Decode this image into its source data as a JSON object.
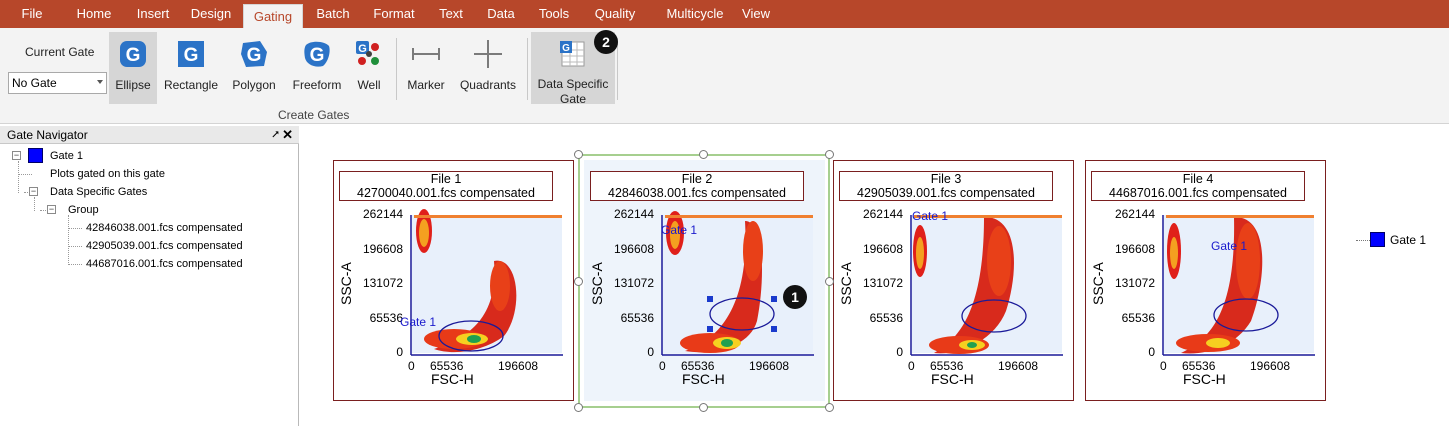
{
  "menu": {
    "tabs": [
      "File",
      "Home",
      "Insert",
      "Design",
      "Gating",
      "Batch",
      "Format",
      "Text",
      "Data",
      "Tools",
      "Quality",
      "Multicycle",
      "View"
    ],
    "active_index": 4
  },
  "ribbon": {
    "current_gate_label": "Current Gate",
    "gate_select_value": "No Gate",
    "buttons": {
      "ellipse": "Ellipse",
      "rectangle": "Rectangle",
      "polygon": "Polygon",
      "freeform": "Freeform",
      "well": "Well",
      "marker": "Marker",
      "quadrants": "Quadrants",
      "data_specific_line1": "Data Specific",
      "data_specific_line2": "Gate"
    },
    "group_label": "Create Gates",
    "badge_2": "2"
  },
  "navigator": {
    "title": "Gate Navigator",
    "pin": "⭧",
    "close": "✕",
    "gate_name": "Gate 1",
    "plots_gated": "Plots gated on this gate",
    "data_specific_gates": "Data Specific Gates",
    "group": "Group",
    "files": [
      "42846038.001.fcs compensated",
      "42905039.001.fcs compensated",
      "44687016.001.fcs compensated"
    ]
  },
  "plots": [
    {
      "title": "File 1",
      "subtitle": "42700040.001.fcs compensated",
      "gate_label": "Gate 1"
    },
    {
      "title": "File 2",
      "subtitle": "42846038.001.fcs compensated",
      "gate_label": "Gate 1"
    },
    {
      "title": "File 3",
      "subtitle": "42905039.001.fcs compensated",
      "gate_label": "Gate 1"
    },
    {
      "title": "File 4",
      "subtitle": "44687016.001.fcs compensated",
      "gate_label": "Gate 1"
    }
  ],
  "axes": {
    "ylabel": "SSC-A",
    "xlabel": "FSC-H",
    "yticks": [
      "262144",
      "196608",
      "131072",
      "65536",
      "0"
    ],
    "xticks": [
      "0",
      "65536",
      "196608"
    ]
  },
  "badge_1": "1",
  "legend": {
    "label": "Gate 1"
  },
  "colors": {
    "accent": "#b7472a",
    "gate": "#0000ff",
    "gate_outline": "#1a1a99"
  }
}
